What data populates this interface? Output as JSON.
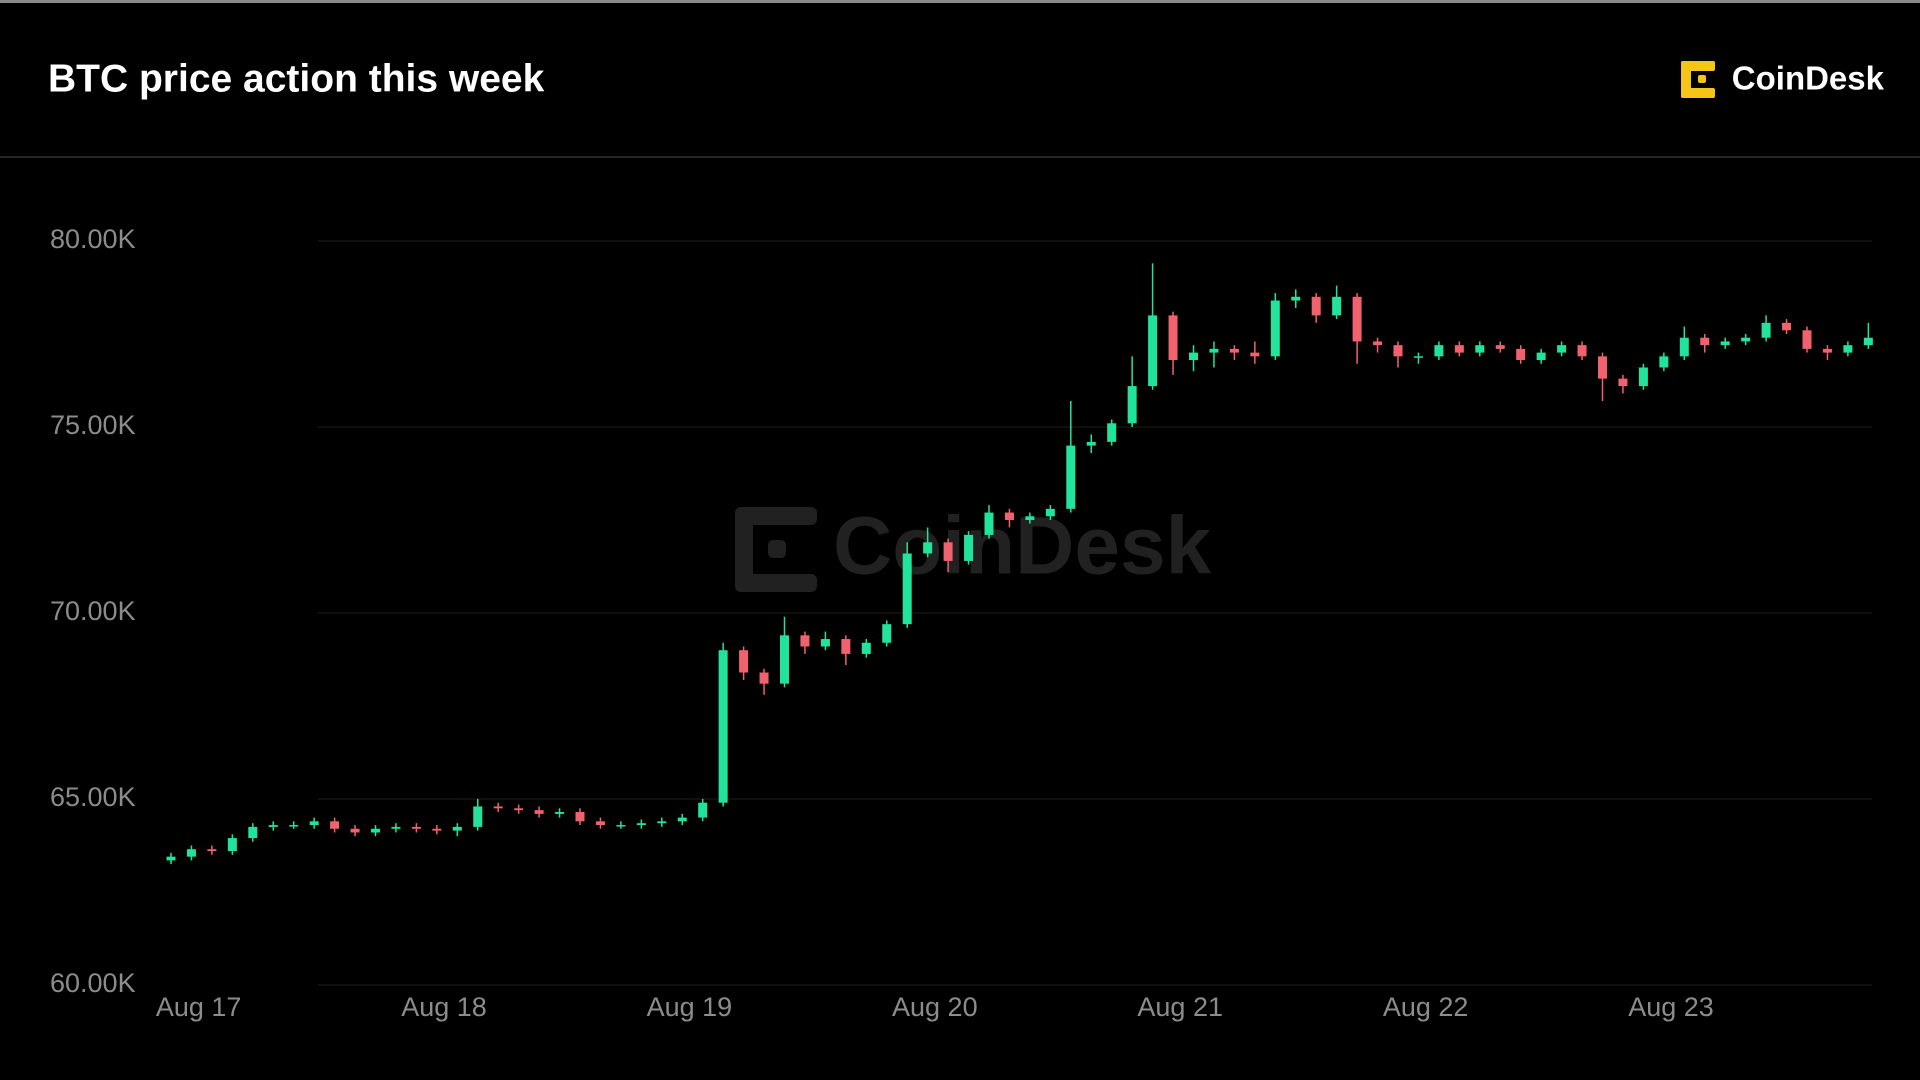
{
  "brand": "CoinDesk",
  "chart_data": {
    "type": "candlestick",
    "title": "BTC price action this week",
    "categories": [
      null,
      "Aug 17",
      null,
      null,
      null,
      null,
      null,
      null,
      null,
      null,
      null,
      null,
      null,
      "Aug 18",
      null,
      null,
      null,
      null,
      null,
      null,
      null,
      null,
      null,
      null,
      null,
      "Aug 19",
      null,
      null,
      null,
      null,
      null,
      null,
      null,
      null,
      null,
      null,
      null,
      "Aug 20",
      null,
      null,
      null,
      null,
      null,
      null,
      null,
      null,
      null,
      null,
      null,
      "Aug 21",
      null,
      null,
      null,
      null,
      null,
      null,
      null,
      null,
      null,
      null,
      null,
      "Aug 22",
      null,
      null,
      null,
      null,
      null,
      null,
      null,
      null,
      null,
      null,
      null,
      "Aug 23",
      null,
      null,
      null,
      null,
      null,
      null,
      null,
      null,
      null,
      null
    ],
    "open": [
      63.35,
      63.45,
      63.65,
      63.6,
      63.95,
      64.25,
      64.3,
      64.3,
      64.4,
      64.2,
      64.1,
      64.2,
      64.25,
      64.2,
      64.15,
      64.25,
      64.8,
      64.75,
      64.7,
      64.6,
      64.65,
      64.4,
      64.3,
      64.3,
      64.35,
      64.4,
      64.5,
      64.9,
      69.0,
      68.4,
      68.1,
      69.4,
      69.1,
      69.3,
      68.9,
      69.2,
      69.7,
      71.6,
      71.9,
      71.4,
      72.1,
      72.7,
      72.5,
      72.6,
      72.8,
      74.5,
      74.6,
      75.1,
      76.1,
      78.0,
      76.8,
      77.0,
      77.1,
      77.0,
      76.9,
      78.4,
      78.5,
      78.0,
      78.5,
      77.3,
      77.2,
      76.9,
      76.9,
      77.2,
      77.0,
      77.2,
      77.1,
      76.8,
      77.0,
      77.2,
      76.9,
      76.3,
      76.1,
      76.6,
      76.9,
      77.4,
      77.2,
      77.3,
      77.4,
      77.8,
      77.6,
      77.1,
      77.0,
      77.2
    ],
    "high": [
      63.55,
      63.75,
      63.75,
      64.05,
      64.35,
      64.4,
      64.4,
      64.5,
      64.5,
      64.3,
      64.3,
      64.35,
      64.35,
      64.3,
      64.35,
      65.0,
      64.9,
      64.85,
      64.8,
      64.75,
      64.75,
      64.5,
      64.4,
      64.45,
      64.5,
      64.6,
      65.0,
      69.2,
      69.1,
      68.5,
      69.9,
      69.5,
      69.5,
      69.4,
      69.3,
      69.8,
      71.9,
      72.3,
      72.0,
      72.2,
      72.9,
      72.8,
      72.7,
      72.9,
      75.7,
      74.8,
      75.2,
      76.9,
      79.4,
      78.1,
      77.2,
      77.3,
      77.2,
      77.3,
      78.6,
      78.7,
      78.6,
      78.8,
      78.6,
      77.4,
      77.3,
      77.0,
      77.3,
      77.3,
      77.3,
      77.3,
      77.2,
      77.1,
      77.3,
      77.3,
      77.0,
      76.4,
      76.7,
      77.0,
      77.7,
      77.5,
      77.4,
      77.5,
      78.0,
      77.9,
      77.7,
      77.2,
      77.3,
      77.8
    ],
    "low": [
      63.25,
      63.35,
      63.5,
      63.5,
      63.85,
      64.15,
      64.2,
      64.2,
      64.1,
      64.0,
      64.0,
      64.1,
      64.1,
      64.05,
      64.0,
      64.15,
      64.65,
      64.6,
      64.5,
      64.5,
      64.3,
      64.2,
      64.2,
      64.2,
      64.25,
      64.3,
      64.4,
      64.8,
      68.2,
      67.8,
      68.0,
      68.9,
      69.0,
      68.6,
      68.8,
      69.1,
      69.6,
      71.5,
      71.1,
      71.3,
      72.0,
      72.3,
      72.4,
      72.5,
      72.7,
      74.3,
      74.5,
      75.0,
      76.0,
      76.4,
      76.5,
      76.6,
      76.8,
      76.7,
      76.8,
      78.2,
      77.8,
      77.9,
      76.7,
      77.0,
      76.6,
      76.7,
      76.8,
      76.9,
      76.9,
      77.0,
      76.7,
      76.7,
      76.9,
      76.8,
      75.7,
      75.9,
      76.0,
      76.5,
      76.8,
      77.0,
      77.1,
      77.2,
      77.3,
      77.5,
      77.0,
      76.8,
      76.9,
      77.1
    ],
    "close": [
      63.45,
      63.65,
      63.6,
      63.95,
      64.25,
      64.3,
      64.3,
      64.4,
      64.2,
      64.1,
      64.2,
      64.25,
      64.2,
      64.15,
      64.25,
      64.8,
      64.75,
      64.7,
      64.6,
      64.65,
      64.4,
      64.3,
      64.3,
      64.35,
      64.4,
      64.5,
      64.9,
      69.0,
      68.4,
      68.1,
      69.4,
      69.1,
      69.3,
      68.9,
      69.2,
      69.7,
      71.6,
      71.9,
      71.4,
      72.1,
      72.7,
      72.5,
      72.6,
      72.8,
      74.5,
      74.6,
      75.1,
      76.1,
      78.0,
      76.8,
      77.0,
      77.1,
      77.0,
      76.9,
      78.4,
      78.5,
      78.0,
      78.5,
      77.3,
      77.2,
      76.9,
      76.9,
      77.2,
      77.0,
      77.2,
      77.1,
      76.8,
      77.0,
      77.2,
      76.9,
      76.3,
      76.1,
      76.6,
      76.9,
      77.4,
      77.2,
      77.3,
      77.4,
      77.8,
      77.6,
      77.1,
      77.0,
      77.2,
      77.4
    ],
    "up_color": "#22e39b",
    "down_color": "#f0626e",
    "ylim": [
      60,
      80
    ],
    "yticks": [
      {
        "value": 60,
        "label": "60.00K"
      },
      {
        "value": 65,
        "label": "65.00K"
      },
      {
        "value": 70,
        "label": "70.00K"
      },
      {
        "value": 75,
        "label": "75.00K"
      },
      {
        "value": 80,
        "label": "80.00K"
      }
    ],
    "grid": true
  }
}
